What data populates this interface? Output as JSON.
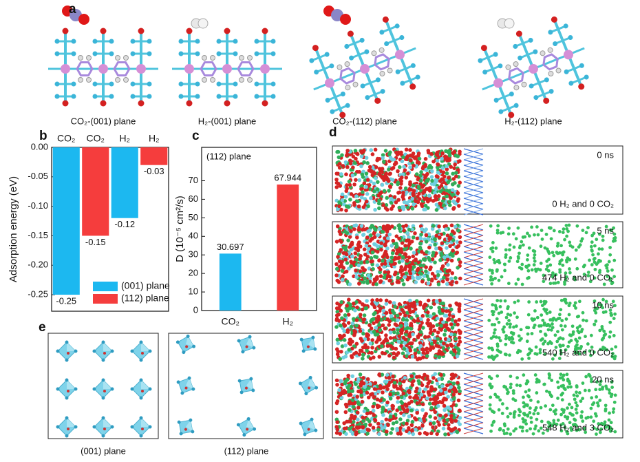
{
  "panel_labels": {
    "a": "a",
    "b": "b",
    "c": "c",
    "d": "d",
    "e": "e"
  },
  "panel_a": {
    "captions": [
      "CO₂-(001) plane",
      "H₂-(001) plane",
      "CO₂-(112) plane",
      "H₂-(112) plane"
    ]
  },
  "chart_data": [
    {
      "type": "bar",
      "ylabel": "Adsorption energy (eV)",
      "categories": [
        "CO₂",
        "CO₂",
        "H₂",
        "H₂"
      ],
      "series": [
        {
          "name": "(001) plane",
          "color": "#1cb8f0",
          "values": [
            -0.25,
            null,
            -0.12,
            null
          ]
        },
        {
          "name": "(112) plane",
          "color": "#f53d3d",
          "values": [
            null,
            -0.15,
            null,
            -0.03
          ]
        }
      ],
      "ylim": [
        -0.278,
        0
      ],
      "yticks": [
        {
          "value": 0,
          "label": "0.00"
        },
        {
          "value": -0.05,
          "label": "-0.05"
        },
        {
          "value": -0.1,
          "label": "-0.10"
        },
        {
          "value": -0.15,
          "label": "-0.15"
        },
        {
          "value": -0.2,
          "label": "-0.20"
        },
        {
          "value": -0.25,
          "label": "-0.25"
        }
      ],
      "legend": "lower right"
    },
    {
      "type": "bar",
      "ylabel": "D (10⁻⁵ cm²/s)",
      "annotation": "(112) plane",
      "categories": [
        "CO₂",
        "H₂"
      ],
      "values": [
        30.697,
        67.944
      ],
      "colors": [
        "#1cb8f0",
        "#f53d3d"
      ],
      "ylim": [
        0,
        88
      ],
      "yticks": [
        0,
        10,
        20,
        30,
        40,
        50,
        60,
        70
      ]
    }
  ],
  "panel_d": {
    "snapshots": [
      {
        "time": "0 ns",
        "count": "0 H₂ and 0 CO₂"
      },
      {
        "time": "5 ns",
        "count": "474 H₂ and 0 CO₂"
      },
      {
        "time": "10 ns",
        "count": "540 H₂ and 0 CO₂"
      },
      {
        "time": "20 ns",
        "count": "548 H₂ and 3 CO₂"
      }
    ]
  },
  "panel_e": {
    "captions": [
      "(001) plane",
      "(112) plane"
    ]
  }
}
